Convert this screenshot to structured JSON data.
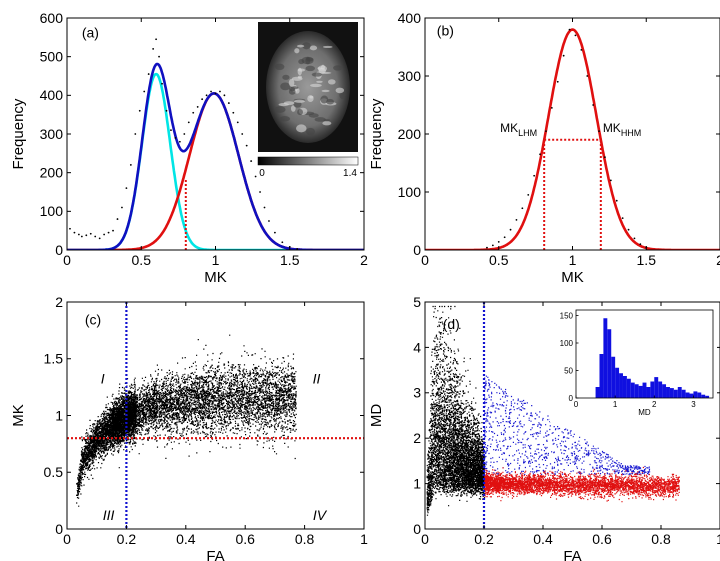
{
  "chart_data": [
    {
      "panel": "(a)",
      "type": "line",
      "xlabel": "MK",
      "ylabel": "Frequency",
      "xlim": [
        0,
        2
      ],
      "ylim": [
        0,
        600
      ],
      "xticks": [
        "0",
        "0.5",
        "1",
        "1.5",
        "2"
      ],
      "yticks": [
        "0",
        "100",
        "200",
        "300",
        "400",
        "500",
        "600"
      ],
      "series": [
        {
          "kind": "gaussian",
          "color": "#00e5e5",
          "amplitude": 455,
          "mean": 0.6,
          "sd": 0.095
        },
        {
          "kind": "gaussian",
          "color": "#e01010",
          "amplitude": 405,
          "mean": 0.99,
          "sd": 0.165
        },
        {
          "kind": "sum",
          "color": "#1010c0",
          "of": [
            0,
            1
          ]
        }
      ],
      "scatter": {
        "color": "#000000",
        "x": [
          0.02,
          0.05,
          0.08,
          0.1,
          0.13,
          0.16,
          0.19,
          0.22,
          0.25,
          0.28,
          0.31,
          0.34,
          0.37,
          0.4,
          0.43,
          0.46,
          0.49,
          0.52,
          0.55,
          0.58,
          0.6,
          0.62,
          0.64,
          0.67,
          0.7,
          0.73,
          0.76,
          0.79,
          0.82,
          0.85,
          0.88,
          0.91,
          0.94,
          0.97,
          1.0,
          1.03,
          1.06,
          1.09,
          1.12,
          1.15,
          1.18,
          1.21,
          1.24,
          1.27,
          1.3,
          1.33,
          1.36,
          1.4,
          1.45,
          1.5,
          1.55
        ],
        "y": [
          55,
          45,
          40,
          35,
          38,
          42,
          35,
          30,
          40,
          45,
          50,
          80,
          110,
          160,
          220,
          300,
          360,
          410,
          455,
          520,
          545,
          500,
          430,
          360,
          310,
          290,
          280,
          300,
          330,
          355,
          370,
          390,
          400,
          410,
          405,
          410,
          400,
          380,
          355,
          330,
          300,
          270,
          230,
          190,
          150,
          110,
          75,
          45,
          20,
          8,
          3
        ]
      },
      "threshold": {
        "x": 0.8,
        "y_top": 185,
        "color": "#e01010"
      },
      "label": {
        "text": "(a)",
        "x": 0.1,
        "y": 550
      },
      "inset": {
        "colorbar_min": "0",
        "colorbar_max": "1.4"
      }
    },
    {
      "panel": "(b)",
      "type": "line",
      "xlabel": "MK",
      "ylabel": "Frequency",
      "xlim": [
        0,
        2
      ],
      "ylim": [
        0,
        400
      ],
      "xticks": [
        "0",
        "0.5",
        "1",
        "1.5",
        "2"
      ],
      "yticks": [
        "0",
        "100",
        "200",
        "300",
        "400"
      ],
      "series": [
        {
          "kind": "gaussian",
          "color": "#e01010",
          "amplitude": 380,
          "mean": 1.0,
          "sd": 0.163
        }
      ],
      "scatter": {
        "color": "#000000",
        "x": [
          0.42,
          0.46,
          0.5,
          0.54,
          0.58,
          0.62,
          0.66,
          0.7,
          0.74,
          0.78,
          0.82,
          0.86,
          0.9,
          0.94,
          0.98,
          1.02,
          1.06,
          1.1,
          1.14,
          1.18,
          1.22,
          1.26,
          1.3,
          1.34,
          1.38,
          1.42,
          1.46,
          1.5
        ],
        "y": [
          4,
          8,
          14,
          22,
          35,
          52,
          72,
          95,
          128,
          165,
          205,
          245,
          290,
          335,
          380,
          370,
          345,
          300,
          250,
          205,
          160,
          120,
          85,
          55,
          35,
          20,
          10,
          5
        ]
      },
      "hm": {
        "y": 190,
        "x_lo": 0.808,
        "x_hi": 1.192,
        "color": "#e01010"
      },
      "annotations": [
        {
          "main": "MK",
          "sub": "LHM"
        },
        {
          "main": "MK",
          "sub": "HHM"
        }
      ],
      "label": {
        "text": "(b)",
        "x": 0.08,
        "y": 370
      }
    },
    {
      "panel": "(c)",
      "type": "scatter",
      "xlabel": "FA",
      "ylabel": "MK",
      "xlim": [
        0,
        1
      ],
      "ylim": [
        0,
        2
      ],
      "xticks": [
        "0",
        "0.2",
        "0.4",
        "0.6",
        "0.8",
        "1"
      ],
      "yticks": [
        "0",
        "0.5",
        "1",
        "1.5",
        "2"
      ],
      "point_color": "#000000",
      "vline": {
        "x": 0.2,
        "color": "#1010d0"
      },
      "hline": {
        "y": 0.8,
        "color": "#e01010"
      },
      "quadrants": [
        {
          "text": "I",
          "x": 0.12,
          "y": 1.28
        },
        {
          "text": "II",
          "x": 0.84,
          "y": 1.28
        },
        {
          "text": "III",
          "x": 0.14,
          "y": 0.08
        },
        {
          "text": "IV",
          "x": 0.85,
          "y": 0.08
        }
      ],
      "label": {
        "text": "(c)",
        "x": 0.06,
        "y": 1.8
      }
    },
    {
      "panel": "(d)",
      "type": "scatter",
      "xlabel": "FA",
      "ylabel": "MD",
      "xlim": [
        0,
        1
      ],
      "ylim": [
        0,
        5
      ],
      "xticks": [
        "0",
        "0.2",
        "0.4",
        "0.6",
        "0.8",
        "1"
      ],
      "yticks": [
        "0",
        "1",
        "2",
        "3",
        "4",
        "5"
      ],
      "vline": {
        "x": 0.2,
        "color": "#1010d0"
      },
      "groups": [
        {
          "color": "#000000"
        },
        {
          "color": "#e01010"
        },
        {
          "color": "#1a1ad0"
        }
      ],
      "label": {
        "text": "(d)",
        "x": 0.06,
        "y": 4.4
      },
      "inset": {
        "type": "bar",
        "xlabel": "MD",
        "xlim": [
          0,
          3.5
        ],
        "ylim": [
          0,
          160
        ],
        "xticks": [
          "0",
          "1",
          "2",
          "3"
        ],
        "yticks": [
          "0",
          "50",
          "100",
          "150"
        ],
        "color": "#1010e0",
        "bin_width": 0.1,
        "bin_starts": [
          0.5,
          0.6,
          0.7,
          0.8,
          0.9,
          1.0,
          1.1,
          1.2,
          1.3,
          1.4,
          1.5,
          1.6,
          1.7,
          1.8,
          1.9,
          2.0,
          2.1,
          2.2,
          2.3,
          2.4,
          2.5,
          2.6,
          2.7,
          2.8,
          2.9,
          3.0,
          3.1,
          3.2,
          3.3
        ],
        "counts": [
          20,
          80,
          145,
          125,
          75,
          55,
          45,
          40,
          35,
          28,
          25,
          22,
          28,
          20,
          30,
          38,
          30,
          25,
          20,
          18,
          15,
          20,
          15,
          10,
          8,
          12,
          10,
          6,
          4
        ]
      }
    }
  ]
}
